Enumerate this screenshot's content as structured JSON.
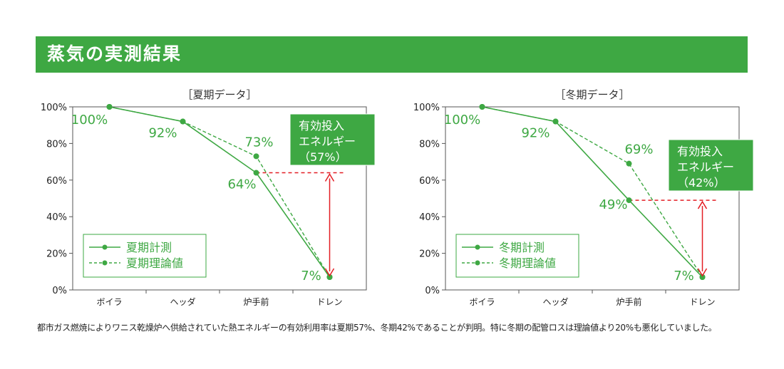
{
  "header": {
    "title": "蒸気の実測結果"
  },
  "colors": {
    "header_green": "#3ea843",
    "line_green": "#3ea843",
    "arrow_red": "#e31e24",
    "axis_gray": "#555555",
    "value_green": "#3ea843"
  },
  "caption": "都市ガス燃焼によりワニス乾燥炉へ供給されていた熱エネルギーの有効利用率は夏期57%、冬期42%であることが判明。特に冬期の配管ロスは理論値より20%も悪化していました。",
  "chart_data": [
    {
      "type": "line",
      "title": "［夏期データ］",
      "categories": [
        "ボイラ",
        "ヘッダ",
        "炉手前",
        "ドレン"
      ],
      "ylim": [
        0,
        100
      ],
      "yticks": [
        "0%",
        "20%",
        "40%",
        "60%",
        "80%",
        "100%"
      ],
      "series": [
        {
          "name": "夏期計測",
          "style": "solid",
          "values": [
            100,
            92,
            64,
            7
          ],
          "labels": [
            "100%",
            "92%",
            "64%",
            "7%"
          ]
        },
        {
          "name": "夏期理論値",
          "style": "dashed",
          "values": [
            100,
            92,
            73,
            7
          ],
          "labels": [
            "",
            "",
            "73%",
            ""
          ]
        }
      ],
      "callout": {
        "lines": [
          "有効投入",
          "エネルギー",
          "（57%）"
        ]
      },
      "arrow": {
        "from": 64,
        "to": 7
      },
      "legend": "bottom-left"
    },
    {
      "type": "line",
      "title": "［冬期データ］",
      "categories": [
        "ボイラ",
        "ヘッダ",
        "炉手前",
        "ドレン"
      ],
      "ylim": [
        0,
        100
      ],
      "yticks": [
        "0%",
        "20%",
        "40%",
        "60%",
        "80%",
        "100%"
      ],
      "series": [
        {
          "name": "冬期計測",
          "style": "solid",
          "values": [
            100,
            92,
            49,
            7
          ],
          "labels": [
            "100%",
            "92%",
            "49%",
            "7%"
          ]
        },
        {
          "name": "冬期理論値",
          "style": "dashed",
          "values": [
            100,
            92,
            69,
            7
          ],
          "labels": [
            "",
            "",
            "69%",
            ""
          ]
        }
      ],
      "callout": {
        "lines": [
          "有効投入",
          "エネルギー",
          "（42%）"
        ]
      },
      "arrow": {
        "from": 49,
        "to": 7
      },
      "legend": "bottom-left"
    }
  ]
}
